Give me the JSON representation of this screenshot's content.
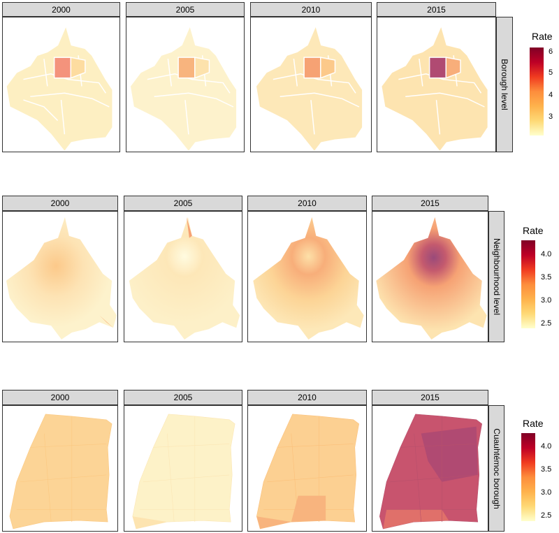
{
  "rows": [
    {
      "level_label": "Borough level",
      "years": [
        "2000",
        "2005",
        "2010",
        "2015"
      ],
      "legend": {
        "title": "Rate",
        "ticks": [
          "6",
          "5",
          "4",
          "3"
        ],
        "tick_values": [
          6,
          5,
          4,
          3
        ],
        "range": [
          2.2,
          6.1
        ]
      }
    },
    {
      "level_label": "Neighbourhood level",
      "years": [
        "2000",
        "2005",
        "2010",
        "2015"
      ],
      "legend": {
        "title": "Rate",
        "ticks": [
          "4.0",
          "3.5",
          "3.0",
          "2.5"
        ],
        "tick_values": [
          4.0,
          3.5,
          3.0,
          2.5
        ],
        "range": [
          2.4,
          4.3
        ]
      }
    },
    {
      "level_label": "Cuauhtémoc borough",
      "years": [
        "2000",
        "2005",
        "2010",
        "2015"
      ],
      "legend": {
        "title": "Rate",
        "ticks": [
          "4.0",
          "3.5",
          "3.0",
          "2.5"
        ],
        "tick_values": [
          4.0,
          3.5,
          3.0,
          2.5
        ],
        "range": [
          2.4,
          4.3
        ]
      }
    }
  ],
  "colors": {
    "scale": [
      "#ffffcc",
      "#fed976",
      "#feb24c",
      "#fd8d3c",
      "#f03b20",
      "#bd0026",
      "#800026"
    ],
    "map_base_light": "#fdf0c4",
    "map_base_mid": "#fce0a6",
    "highlight_2000": "#f4937c",
    "highlight_2015": "#b04a72",
    "boundary": "#ffffff"
  }
}
